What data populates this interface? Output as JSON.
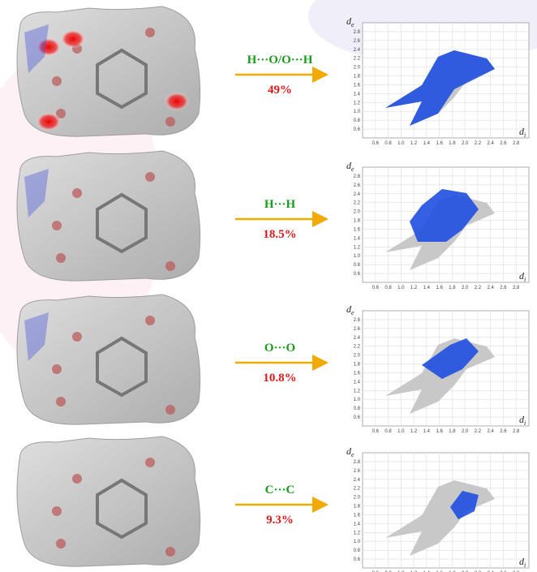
{
  "panels": [
    {
      "contact": "H···O/O···H",
      "percent": "49%"
    },
    {
      "contact": "H···H",
      "percent": "18.5%"
    },
    {
      "contact": "O···O",
      "percent": "10.8%"
    },
    {
      "contact": "C···C",
      "percent": "9.3%"
    }
  ],
  "fingerprint": {
    "xlim": [
      0.4,
      3.0
    ],
    "ylim": [
      0.4,
      3.0
    ],
    "xticks": [
      0.6,
      0.8,
      {
        "value": 1,
        "label": "1.0"
      },
      1.2,
      1.4,
      1.6,
      1.8,
      {
        "value": 2,
        "label": "2.0"
      },
      2.2,
      2.4,
      2.6,
      2.8
    ],
    "yticks": [
      0.6,
      0.8,
      {
        "value": 1,
        "label": "1.0"
      },
      1.2,
      1.4,
      1.6,
      1.8,
      {
        "value": 2,
        "label": "2.0"
      },
      2.2,
      2.4,
      2.6,
      2.8
    ],
    "y_label": "d",
    "y_label_sub": "e",
    "x_label": "d",
    "x_label_sub": "i"
  }
}
